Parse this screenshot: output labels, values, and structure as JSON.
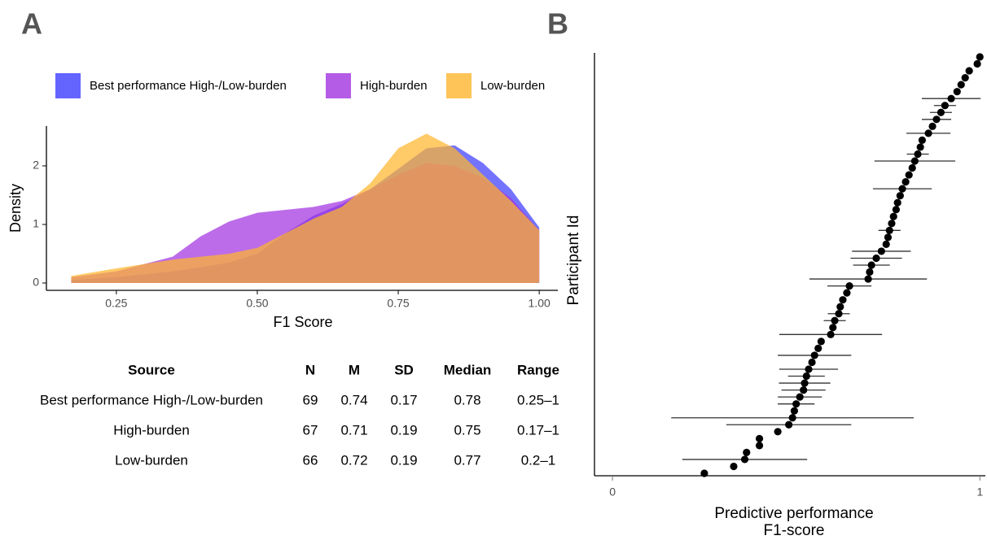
{
  "chart_data": [
    {
      "type": "density",
      "panel_label": "A",
      "xlabel": "F1 Score",
      "ylabel": "Density",
      "x": [
        0.17,
        0.25,
        0.35,
        0.4,
        0.45,
        0.5,
        0.55,
        0.6,
        0.65,
        0.7,
        0.75,
        0.8,
        0.85,
        0.9,
        0.95,
        1.0
      ],
      "series": [
        {
          "name": "Best performance High-/Low-burden",
          "color": "#3d3dff",
          "values": [
            0.05,
            0.1,
            0.2,
            0.27,
            0.35,
            0.5,
            0.85,
            1.15,
            1.35,
            1.6,
            1.95,
            2.3,
            2.35,
            2.05,
            1.6,
            0.95
          ]
        },
        {
          "name": "High-burden",
          "color": "#a233e0",
          "values": [
            0.1,
            0.2,
            0.45,
            0.8,
            1.05,
            1.2,
            1.25,
            1.3,
            1.4,
            1.6,
            1.85,
            2.05,
            2.0,
            1.8,
            1.45,
            0.9
          ]
        },
        {
          "name": "Low-burden",
          "color": "#ffb52e",
          "values": [
            0.12,
            0.25,
            0.4,
            0.45,
            0.5,
            0.6,
            0.85,
            1.1,
            1.3,
            1.7,
            2.3,
            2.55,
            2.3,
            1.85,
            1.4,
            0.9
          ]
        }
      ],
      "xlim": [
        0.126,
        1.033
      ],
      "ylim": [
        0,
        2.68
      ],
      "xticks": [
        0.25,
        {
          "value": 0.5,
          "label": "0.50"
        },
        0.75,
        {
          "value": 1,
          "label": "1.00"
        }
      ],
      "yticks": [
        0,
        1,
        2
      ],
      "legend": "top"
    },
    {
      "type": "dotplot",
      "panel_label": "B",
      "xlabel": [
        "Predictive performance",
        "F1-score"
      ],
      "ylabel": "Participant Id",
      "values": [
        0.25,
        0.33,
        0.36,
        0.365,
        0.4,
        0.4,
        0.45,
        0.48,
        0.49,
        0.495,
        0.5,
        0.51,
        0.52,
        0.523,
        0.528,
        0.534,
        0.543,
        0.55,
        0.56,
        0.568,
        0.594,
        0.6,
        0.605,
        0.616,
        0.62,
        0.627,
        0.638,
        0.645,
        0.696,
        0.7,
        0.705,
        0.718,
        0.732,
        0.745,
        0.75,
        0.754,
        0.76,
        0.765,
        0.772,
        0.776,
        0.783,
        0.789,
        0.798,
        0.807,
        0.816,
        0.823,
        0.831,
        0.838,
        0.843,
        0.86,
        0.871,
        0.882,
        0.894,
        0.905,
        0.922,
        0.938,
        0.949,
        0.96,
        0.971,
        0.993,
        1.0
      ],
      "errors": [
        null,
        null,
        0.17,
        null,
        null,
        null,
        null,
        0.17,
        0.33,
        null,
        0.05,
        0.06,
        0.06,
        0.07,
        0.05,
        0.08,
        null,
        0.1,
        null,
        null,
        0.14,
        null,
        0.03,
        0.03,
        null,
        null,
        null,
        0.06,
        0.16,
        null,
        0.05,
        0.07,
        0.08,
        null,
        null,
        0.03,
        null,
        null,
        null,
        null,
        null,
        0.08,
        null,
        null,
        null,
        0.11,
        0.03,
        null,
        null,
        0.06,
        null,
        0.04,
        0.03,
        0.03,
        0.08,
        null,
        null,
        null,
        null,
        null,
        null
      ],
      "color": "#000000",
      "xlim": [
        -0.049,
        1.015
      ],
      "xticks": [
        0,
        1
      ]
    }
  ],
  "table": {
    "columns": [
      "Source",
      "N",
      "M",
      "SD",
      "Median",
      "Range"
    ],
    "rows": [
      [
        "Best performance High-/Low-burden",
        69,
        0.74,
        0.17,
        0.78,
        "0.25–1"
      ],
      [
        "High-burden",
        67,
        0.71,
        0.19,
        0.75,
        "0.17–1"
      ],
      [
        "Low-burden",
        66,
        0.72,
        0.19,
        0.77,
        "0.2–1"
      ]
    ]
  }
}
